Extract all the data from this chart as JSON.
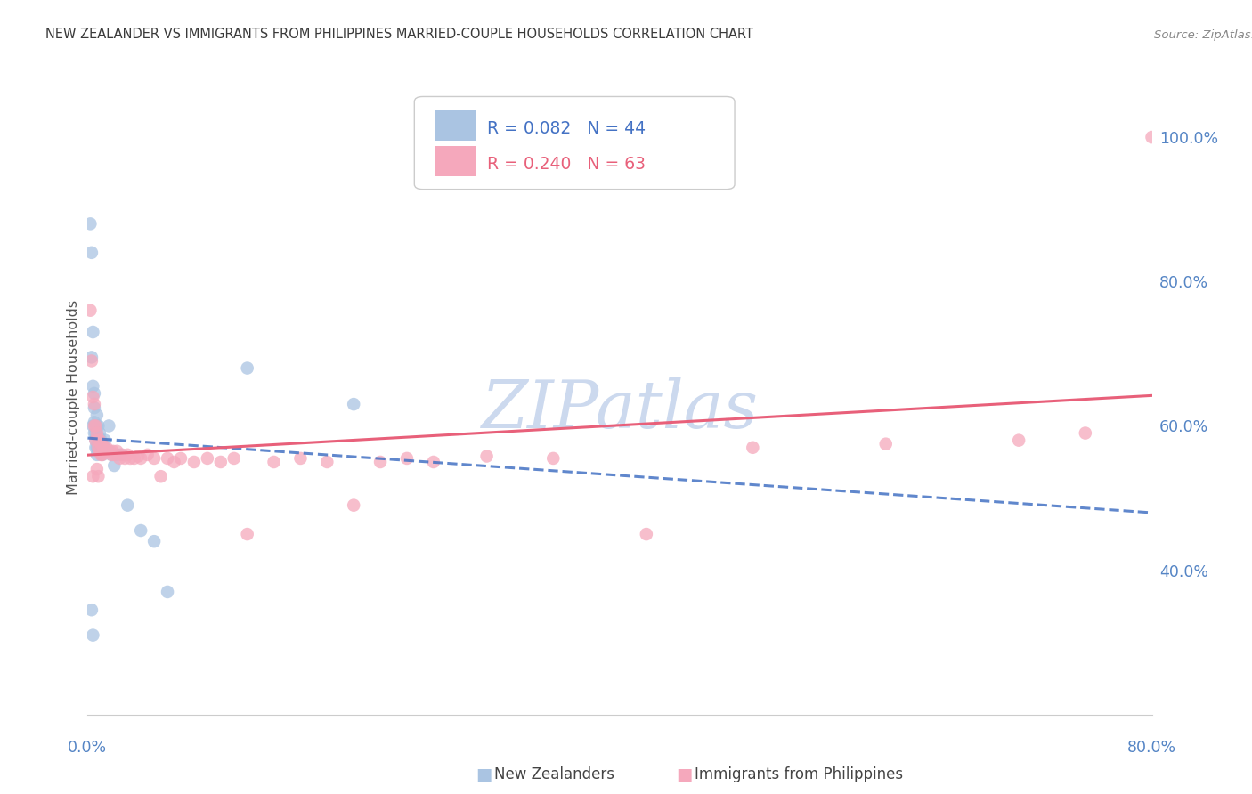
{
  "title": "NEW ZEALANDER VS IMMIGRANTS FROM PHILIPPINES MARRIED-COUPLE HOUSEHOLDS CORRELATION CHART",
  "source": "Source: ZipAtlas.com",
  "ylabel": "Married-couple Households",
  "ytick_labels": [
    "40.0%",
    "60.0%",
    "80.0%",
    "100.0%"
  ],
  "ytick_values": [
    0.4,
    0.6,
    0.8,
    1.0
  ],
  "xlim": [
    0.0,
    0.8
  ],
  "ylim": [
    0.2,
    1.08
  ],
  "legend_r_nz": "R = 0.082",
  "legend_n_nz": "N = 44",
  "legend_r_ph": "R = 0.240",
  "legend_n_ph": "N = 63",
  "nz_color": "#aac4e2",
  "ph_color": "#f5a8bc",
  "nz_line_color": "#4472c4",
  "ph_line_color": "#e8607a",
  "background_color": "#ffffff",
  "grid_color": "#dde5f0",
  "title_color": "#3a3a3a",
  "axis_color": "#5585c5",
  "watermark_color": "#ccd9ee",
  "nz_x": [
    0.002,
    0.003,
    0.003,
    0.004,
    0.004,
    0.004,
    0.005,
    0.005,
    0.005,
    0.005,
    0.006,
    0.006,
    0.006,
    0.007,
    0.007,
    0.007,
    0.007,
    0.007,
    0.008,
    0.008,
    0.008,
    0.009,
    0.009,
    0.01,
    0.01,
    0.011,
    0.011,
    0.012,
    0.013,
    0.014,
    0.015,
    0.016,
    0.018,
    0.02,
    0.022,
    0.025,
    0.03,
    0.04,
    0.05,
    0.06,
    0.003,
    0.004,
    0.12,
    0.2
  ],
  "nz_y": [
    0.88,
    0.84,
    0.695,
    0.73,
    0.655,
    0.6,
    0.645,
    0.625,
    0.605,
    0.59,
    0.59,
    0.58,
    0.57,
    0.615,
    0.6,
    0.585,
    0.57,
    0.56,
    0.6,
    0.585,
    0.57,
    0.59,
    0.57,
    0.58,
    0.565,
    0.575,
    0.56,
    0.565,
    0.58,
    0.565,
    0.565,
    0.6,
    0.56,
    0.545,
    0.56,
    0.56,
    0.49,
    0.455,
    0.44,
    0.37,
    0.345,
    0.31,
    0.68,
    0.63
  ],
  "ph_x": [
    0.002,
    0.003,
    0.004,
    0.005,
    0.005,
    0.006,
    0.006,
    0.007,
    0.008,
    0.008,
    0.009,
    0.009,
    0.01,
    0.01,
    0.011,
    0.011,
    0.012,
    0.013,
    0.014,
    0.015,
    0.016,
    0.017,
    0.018,
    0.019,
    0.02,
    0.022,
    0.024,
    0.026,
    0.028,
    0.03,
    0.032,
    0.035,
    0.038,
    0.04,
    0.045,
    0.05,
    0.055,
    0.06,
    0.065,
    0.07,
    0.08,
    0.09,
    0.1,
    0.11,
    0.12,
    0.14,
    0.16,
    0.18,
    0.2,
    0.22,
    0.24,
    0.26,
    0.3,
    0.35,
    0.42,
    0.5,
    0.6,
    0.7,
    0.75,
    0.004,
    0.007,
    0.008,
    0.8
  ],
  "ph_y": [
    0.76,
    0.69,
    0.64,
    0.63,
    0.6,
    0.6,
    0.58,
    0.59,
    0.58,
    0.57,
    0.58,
    0.565,
    0.575,
    0.56,
    0.575,
    0.56,
    0.57,
    0.565,
    0.57,
    0.565,
    0.565,
    0.565,
    0.56,
    0.565,
    0.56,
    0.565,
    0.555,
    0.56,
    0.555,
    0.56,
    0.555,
    0.555,
    0.558,
    0.555,
    0.56,
    0.555,
    0.53,
    0.555,
    0.55,
    0.555,
    0.55,
    0.555,
    0.55,
    0.555,
    0.45,
    0.55,
    0.555,
    0.55,
    0.49,
    0.55,
    0.555,
    0.55,
    0.558,
    0.555,
    0.45,
    0.57,
    0.575,
    0.58,
    0.59,
    0.53,
    0.54,
    0.53,
    1.0
  ]
}
